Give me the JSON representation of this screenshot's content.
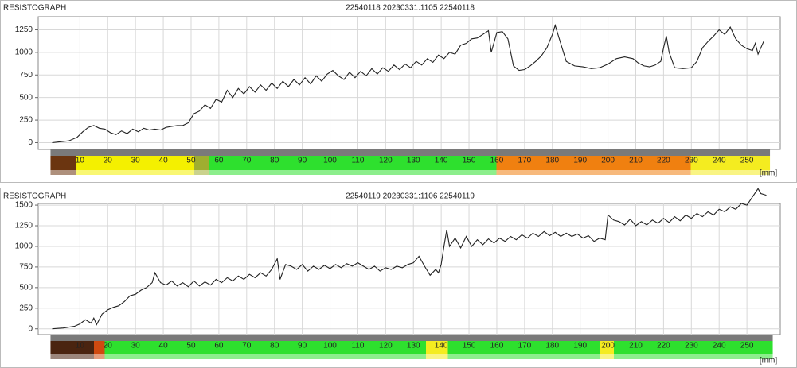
{
  "chart_data": [
    {
      "type": "line",
      "header": "RESISTOGRAPH",
      "title": "22540118 20230331:1105 22540118",
      "x_unit": "[mm]",
      "x": [
        0,
        3,
        6,
        9,
        11,
        13,
        15,
        17,
        19,
        21,
        23,
        25,
        27,
        29,
        31,
        33,
        35,
        37,
        39,
        41,
        43,
        45,
        47,
        49,
        51,
        53,
        55,
        57,
        59,
        61,
        63,
        65,
        67,
        69,
        71,
        73,
        75,
        77,
        79,
        81,
        83,
        85,
        87,
        89,
        91,
        93,
        95,
        97,
        99,
        101,
        103,
        105,
        107,
        109,
        111,
        113,
        115,
        117,
        119,
        121,
        123,
        125,
        127,
        129,
        131,
        133,
        135,
        137,
        139,
        141,
        143,
        145,
        147,
        149,
        151,
        153,
        155,
        157,
        158,
        160,
        162,
        164,
        166,
        168,
        170,
        172,
        174,
        176,
        178,
        180,
        181,
        183,
        185,
        188,
        191,
        194,
        197,
        200,
        203,
        206,
        209,
        211,
        213,
        215,
        217,
        219,
        220,
        221,
        222,
        224,
        227,
        230,
        232,
        234,
        236,
        238,
        240,
        242,
        244,
        246,
        248,
        250,
        252,
        253,
        254,
        256
      ],
      "series": [
        {
          "color": "#222222",
          "values": [
            0,
            10,
            20,
            60,
            120,
            170,
            190,
            160,
            150,
            110,
            90,
            130,
            100,
            150,
            120,
            160,
            140,
            150,
            140,
            170,
            180,
            190,
            190,
            220,
            320,
            350,
            420,
            380,
            480,
            450,
            580,
            500,
            600,
            540,
            620,
            560,
            640,
            580,
            660,
            600,
            680,
            620,
            700,
            640,
            720,
            650,
            740,
            680,
            760,
            800,
            740,
            700,
            780,
            720,
            790,
            740,
            820,
            760,
            830,
            790,
            860,
            810,
            870,
            830,
            900,
            860,
            930,
            890,
            970,
            930,
            1000,
            980,
            1080,
            1100,
            1150,
            1160,
            1200,
            1240,
            1000,
            1220,
            1230,
            1150,
            850,
            800,
            810,
            850,
            900,
            960,
            1050,
            1200,
            1300,
            1100,
            900,
            850,
            840,
            820,
            830,
            870,
            930,
            950,
            930,
            880,
            850,
            840,
            860,
            900,
            1050,
            1180,
            1000,
            830,
            820,
            830,
            900,
            1050,
            1120,
            1180,
            1250,
            1200,
            1280,
            1150,
            1080,
            1040,
            1020,
            1100,
            980,
            1120
          ]
        }
      ],
      "xlim": [
        -5,
        262
      ],
      "ylim": [
        -75,
        1395
      ],
      "xticks": [
        10,
        20,
        30,
        40,
        50,
        60,
        70,
        80,
        90,
        100,
        110,
        120,
        130,
        140,
        150,
        160,
        170,
        180,
        190,
        200,
        210,
        220,
        230,
        240,
        250
      ],
      "yticks": [
        0,
        250,
        500,
        750,
        1000,
        1250
      ],
      "grid": true
    },
    {
      "type": "line",
      "header": "RESISTOGRAPH",
      "title": "22540119 20230331:1106 22540119",
      "x_unit": "[mm]",
      "x": [
        0,
        4,
        8,
        10,
        12,
        14,
        15,
        16,
        18,
        20,
        22,
        24,
        26,
        28,
        30,
        32,
        34,
        36,
        37,
        39,
        41,
        43,
        45,
        47,
        49,
        51,
        53,
        55,
        57,
        59,
        61,
        63,
        65,
        67,
        69,
        71,
        73,
        75,
        77,
        79,
        81,
        82,
        84,
        86,
        88,
        90,
        92,
        94,
        96,
        98,
        100,
        102,
        104,
        106,
        108,
        110,
        112,
        114,
        116,
        118,
        120,
        122,
        124,
        126,
        128,
        130,
        132,
        134,
        136,
        138,
        139,
        140,
        141,
        142,
        143,
        145,
        147,
        149,
        151,
        153,
        155,
        157,
        159,
        161,
        163,
        165,
        167,
        169,
        171,
        173,
        175,
        177,
        179,
        181,
        183,
        185,
        187,
        189,
        191,
        193,
        195,
        197,
        199,
        200,
        202,
        204,
        206,
        208,
        210,
        212,
        214,
        216,
        218,
        220,
        222,
        224,
        226,
        228,
        230,
        232,
        234,
        236,
        238,
        240,
        242,
        244,
        246,
        248,
        250,
        252,
        254,
        255,
        257
      ],
      "series": [
        {
          "color": "#222222",
          "values": [
            0,
            10,
            30,
            60,
            110,
            70,
            130,
            50,
            180,
            230,
            260,
            280,
            330,
            400,
            420,
            470,
            500,
            560,
            680,
            560,
            530,
            580,
            520,
            560,
            510,
            580,
            520,
            570,
            530,
            600,
            560,
            620,
            580,
            640,
            600,
            660,
            620,
            680,
            640,
            720,
            850,
            600,
            780,
            760,
            720,
            780,
            700,
            760,
            720,
            770,
            730,
            780,
            740,
            790,
            760,
            800,
            760,
            720,
            760,
            700,
            740,
            720,
            760,
            740,
            780,
            800,
            880,
            760,
            650,
            720,
            680,
            780,
            1000,
            1200,
            1000,
            1100,
            980,
            1120,
            1000,
            1080,
            1020,
            1090,
            1040,
            1100,
            1060,
            1120,
            1080,
            1140,
            1100,
            1160,
            1120,
            1180,
            1130,
            1170,
            1120,
            1160,
            1120,
            1150,
            1100,
            1130,
            1060,
            1100,
            1080,
            1380,
            1320,
            1300,
            1260,
            1330,
            1250,
            1300,
            1260,
            1320,
            1280,
            1340,
            1290,
            1360,
            1310,
            1380,
            1340,
            1400,
            1360,
            1420,
            1380,
            1450,
            1420,
            1480,
            1450,
            1520,
            1500,
            1600,
            1700,
            1640,
            1620
          ]
        }
      ],
      "xlim": [
        -5,
        262
      ],
      "ylim": [
        -70,
        1520
      ],
      "xticks": [
        10,
        20,
        30,
        40,
        50,
        60,
        70,
        80,
        90,
        100,
        110,
        120,
        130,
        140,
        150,
        160,
        170,
        180,
        190,
        200,
        210,
        220,
        230,
        240,
        250
      ],
      "yticks": [
        0,
        250,
        500,
        750,
        1000,
        1250,
        1500
      ],
      "grid": true
    }
  ]
}
